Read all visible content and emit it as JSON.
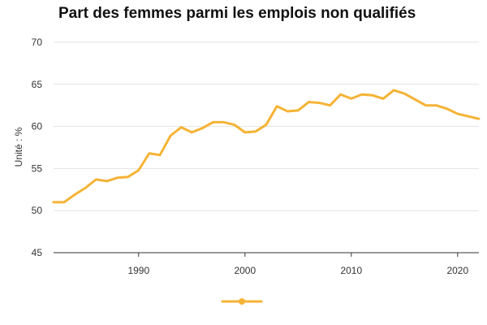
{
  "chart_data": {
    "type": "line",
    "title": "Part des femmes parmi les emplois non qualifiés",
    "ylabel": "Unité : %",
    "xlabel": "",
    "xlim": [
      1982,
      2022
    ],
    "ylim": [
      45,
      70
    ],
    "xticks": [
      1990,
      2000,
      2010,
      2020
    ],
    "yticks": [
      45,
      50,
      55,
      60,
      65,
      70
    ],
    "grid": "horizontal",
    "legend": "bottom-center",
    "series": [
      {
        "color": "#f5b335",
        "x": [
          1982,
          1983,
          1984,
          1985,
          1986,
          1987,
          1988,
          1989,
          1990,
          1991,
          1992,
          1993,
          1994,
          1995,
          1996,
          1997,
          1998,
          1999,
          2000,
          2001,
          2002,
          2003,
          2004,
          2005,
          2006,
          2007,
          2008,
          2009,
          2010,
          2011,
          2012,
          2013,
          2014,
          2015,
          2016,
          2017,
          2018,
          2019,
          2020,
          2021,
          2022
        ],
        "values": [
          51.0,
          51.0,
          51.9,
          52.7,
          53.7,
          53.5,
          53.9,
          54.0,
          54.8,
          56.8,
          56.6,
          58.9,
          59.9,
          59.3,
          59.8,
          60.5,
          60.5,
          60.2,
          59.3,
          59.4,
          60.2,
          62.4,
          61.8,
          61.9,
          62.9,
          62.8,
          62.5,
          63.8,
          63.3,
          63.8,
          63.7,
          63.3,
          64.3,
          63.9,
          63.2,
          62.5,
          62.5,
          62.1,
          61.5,
          61.2,
          60.9
        ]
      }
    ]
  }
}
